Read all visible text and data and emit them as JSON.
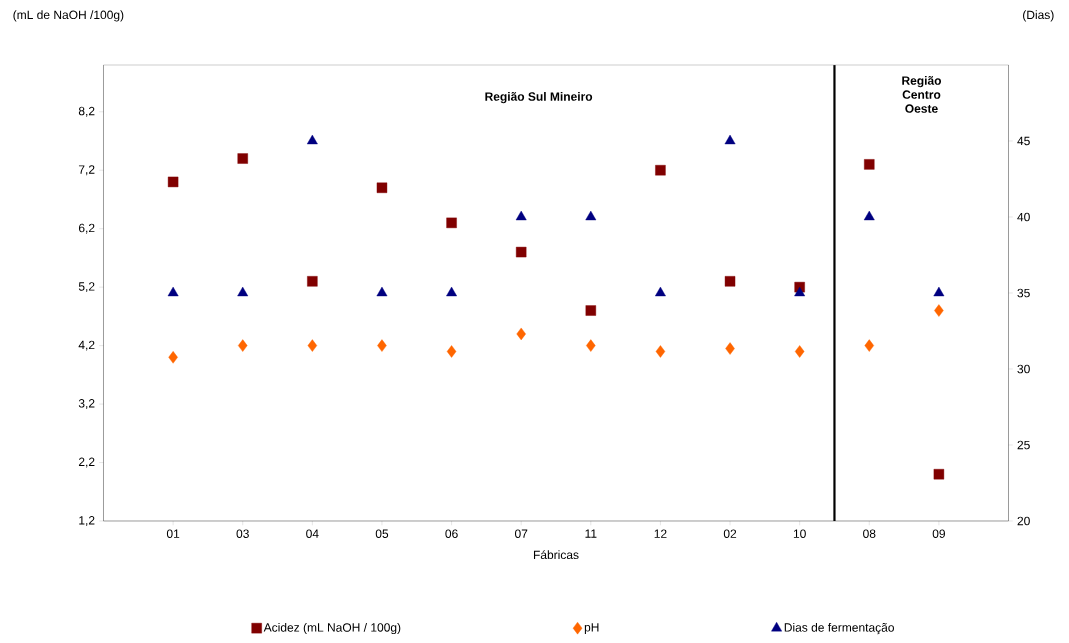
{
  "chart_data": {
    "type": "scatter",
    "categories": [
      "01",
      "03",
      "04",
      "05",
      "06",
      "07",
      "11",
      "12",
      "02",
      "10",
      "08",
      "09"
    ],
    "series": [
      {
        "name": "Acidez (mL NaOH / 100g)",
        "color": "#800000",
        "marker": "square",
        "values": [
          7.0,
          7.4,
          5.3,
          6.9,
          6.3,
          5.8,
          4.8,
          7.2,
          5.3,
          5.2,
          7.3,
          2.0
        ]
      },
      {
        "name": "pH",
        "color": "#ff6600",
        "marker": "diamond",
        "values": [
          4.0,
          4.2,
          4.2,
          4.2,
          4.1,
          4.4,
          4.2,
          4.1,
          4.15,
          4.1,
          4.2,
          4.8
        ]
      },
      {
        "name": "Dias de fermentação",
        "color": "#000080",
        "marker": "triangle",
        "axis": "y2",
        "values": [
          35,
          35,
          45,
          35,
          35,
          40,
          40,
          35,
          45,
          35,
          40,
          35
        ]
      }
    ],
    "xlabel": "Fábricas",
    "ylabel": "(mL de NaOH /100g)",
    "y2label": "(Dias)",
    "ylim": [
      1.2,
      9.0
    ],
    "yticks": [
      {
        "value": 1.2,
        "label": "1,2"
      },
      {
        "value": 2.2,
        "label": "2,2"
      },
      {
        "value": 3.2,
        "label": "3,2"
      },
      {
        "value": 4.2,
        "label": "4,2"
      },
      {
        "value": 5.2,
        "label": "5,2"
      },
      {
        "value": 6.2,
        "label": "6,2"
      },
      {
        "value": 7.2,
        "label": "7,2"
      },
      {
        "value": 8.2,
        "label": "8,2"
      }
    ],
    "y2lim": [
      20,
      50
    ],
    "y2ticks": [
      20,
      25,
      30,
      35,
      40,
      45
    ],
    "annotations": [
      "Região Sul Mineiro",
      "Região Centro Oeste"
    ],
    "legend": "bottom",
    "grid": false
  }
}
